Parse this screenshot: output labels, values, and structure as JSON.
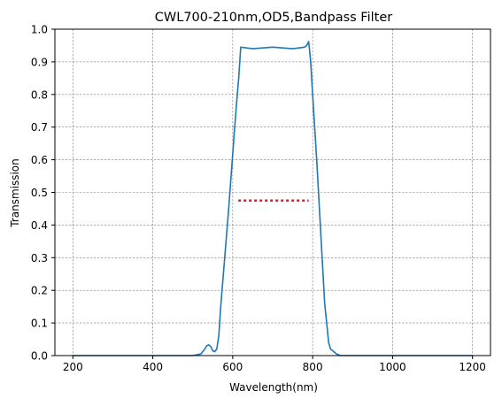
{
  "chart_data": {
    "type": "line",
    "title": "CWL700-210nm,OD5,Bandpass Filter",
    "xlabel": "Wavelength(nm)",
    "ylabel": "Transmission",
    "xlim": [
      155,
      1245
    ],
    "ylim": [
      0,
      1.0
    ],
    "xticks": [
      200,
      400,
      600,
      800,
      1000,
      1200
    ],
    "yticks": [
      0.0,
      0.1,
      0.2,
      0.3,
      0.4,
      0.5,
      0.6,
      0.7,
      0.8,
      0.9,
      1.0
    ],
    "grid": true,
    "colors": {
      "line": "#1f77b4",
      "marker": "#e41a1c",
      "grid": "#808080"
    },
    "series": [
      {
        "style": "solid",
        "x": [
          200,
          400,
          500,
          520,
          530,
          535,
          540,
          545,
          550,
          555,
          560,
          565,
          570,
          580,
          590,
          600,
          605,
          610,
          615,
          620,
          650,
          700,
          750,
          780,
          785,
          790,
          792,
          795,
          800,
          810,
          820,
          830,
          840,
          845,
          850,
          860,
          870,
          900,
          1000,
          1200
        ],
        "y": [
          0,
          0,
          0,
          0.005,
          0.02,
          0.03,
          0.033,
          0.028,
          0.015,
          0.012,
          0.02,
          0.06,
          0.15,
          0.3,
          0.45,
          0.62,
          0.7,
          0.78,
          0.85,
          0.945,
          0.94,
          0.945,
          0.94,
          0.945,
          0.95,
          0.962,
          0.94,
          0.9,
          0.8,
          0.6,
          0.38,
          0.16,
          0.04,
          0.02,
          0.015,
          0.005,
          0,
          0,
          0,
          0
        ]
      },
      {
        "style": "dotted",
        "x": [
          614,
          790
        ],
        "y": [
          0.475,
          0.475
        ]
      }
    ]
  }
}
